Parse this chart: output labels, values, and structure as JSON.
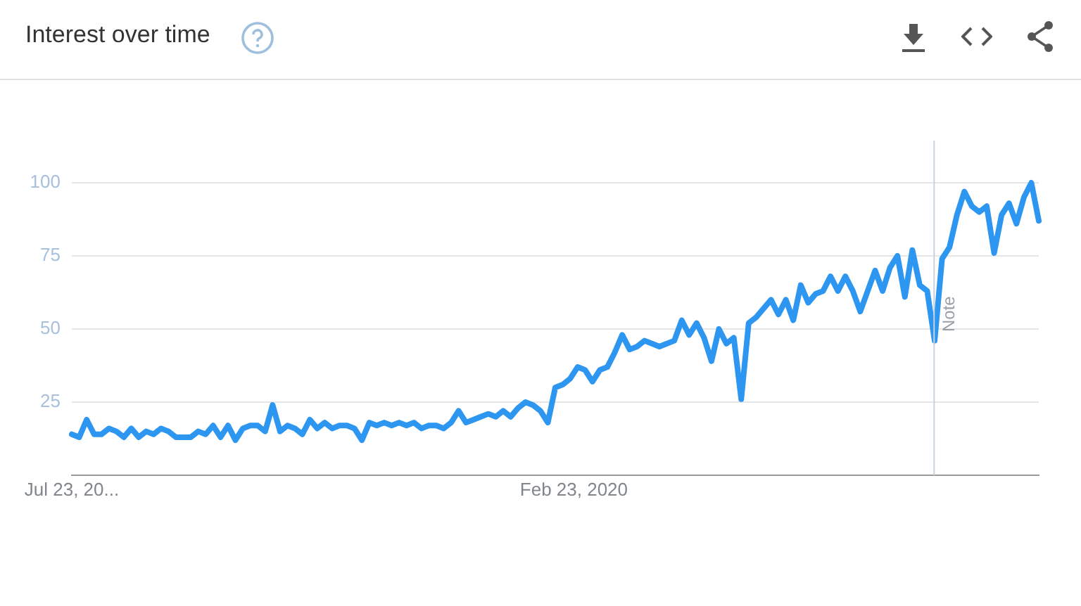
{
  "chart_data": {
    "type": "line",
    "title": "Interest over time",
    "x": [
      "2017-07-23",
      "2017-08-06",
      "2017-08-20",
      "2017-09-03",
      "2017-09-17",
      "2017-10-01",
      "2017-10-15",
      "2017-10-29",
      "2017-11-12",
      "2017-11-26",
      "2017-12-10",
      "2017-12-24",
      "2018-01-07",
      "2018-01-21",
      "2018-02-04",
      "2018-02-18",
      "2018-03-04",
      "2018-03-18",
      "2018-04-01",
      "2018-04-15",
      "2018-04-29",
      "2018-05-13",
      "2018-05-27",
      "2018-06-10",
      "2018-06-24",
      "2018-07-08",
      "2018-07-22",
      "2018-08-05",
      "2018-08-19",
      "2018-09-02",
      "2018-09-16",
      "2018-09-30",
      "2018-10-14",
      "2018-10-28",
      "2018-11-11",
      "2018-11-25",
      "2018-12-09",
      "2018-12-23",
      "2019-01-06",
      "2019-01-20",
      "2019-02-03",
      "2019-02-17",
      "2019-03-03",
      "2019-03-17",
      "2019-03-31",
      "2019-04-14",
      "2019-04-28",
      "2019-05-12",
      "2019-05-26",
      "2019-06-09",
      "2019-06-23",
      "2019-07-07",
      "2019-07-21",
      "2019-08-04",
      "2019-08-18",
      "2019-09-01",
      "2019-09-15",
      "2019-09-29",
      "2019-10-13",
      "2019-10-27",
      "2019-11-10",
      "2019-11-24",
      "2019-12-08",
      "2019-12-22",
      "2020-01-05",
      "2020-01-19",
      "2020-02-02",
      "2020-02-16",
      "2020-03-01",
      "2020-03-15",
      "2020-03-29",
      "2020-04-12",
      "2020-04-26",
      "2020-05-10",
      "2020-05-24",
      "2020-06-07",
      "2020-06-21",
      "2020-07-05",
      "2020-07-19",
      "2020-08-02",
      "2020-08-16",
      "2020-08-30",
      "2020-09-13",
      "2020-09-27",
      "2020-10-11",
      "2020-10-25",
      "2020-11-08",
      "2020-11-22",
      "2020-12-06",
      "2020-12-20",
      "2021-01-03",
      "2021-01-17",
      "2021-01-31",
      "2021-02-14",
      "2021-02-28",
      "2021-03-14",
      "2021-03-28",
      "2021-04-11",
      "2021-04-25",
      "2021-05-09",
      "2021-05-23",
      "2021-06-06",
      "2021-06-20",
      "2021-07-04",
      "2021-07-18",
      "2021-08-01",
      "2021-08-15",
      "2021-08-29",
      "2021-09-12",
      "2021-09-26",
      "2021-10-10",
      "2021-10-24",
      "2021-11-07",
      "2021-11-21",
      "2021-12-05",
      "2021-12-19",
      "2022-01-02",
      "2022-01-16",
      "2022-01-30",
      "2022-02-13",
      "2022-02-27",
      "2022-03-13",
      "2022-03-27",
      "2022-04-10",
      "2022-04-24",
      "2022-05-08",
      "2022-05-22",
      "2022-06-05",
      "2022-06-19",
      "2022-07-03",
      "2022-07-17"
    ],
    "series": [
      {
        "color": "#2c96f1",
        "values": [
          14,
          13,
          19,
          14,
          14,
          16,
          15,
          13,
          16,
          13,
          15,
          14,
          16,
          15,
          13,
          13,
          13,
          15,
          14,
          17,
          13,
          17,
          12,
          16,
          17,
          17,
          15,
          24,
          15,
          17,
          16,
          14,
          19,
          16,
          18,
          16,
          17,
          17,
          16,
          12,
          18,
          17,
          18,
          17,
          18,
          17,
          18,
          16,
          17,
          17,
          16,
          18,
          22,
          18,
          19,
          20,
          21,
          20,
          22,
          20,
          23,
          25,
          24,
          22,
          18,
          30,
          31,
          33,
          37,
          36,
          32,
          36,
          37,
          42,
          48,
          43,
          44,
          46,
          45,
          44,
          45,
          46,
          53,
          48,
          52,
          47,
          39,
          50,
          45,
          47,
          26,
          52,
          54,
          57,
          60,
          55,
          60,
          53,
          65,
          59,
          62,
          63,
          68,
          63,
          68,
          63,
          56,
          63,
          70,
          63,
          71,
          75,
          61,
          77,
          65,
          63,
          46,
          74,
          78,
          89,
          97,
          92,
          90,
          92,
          76,
          89,
          93,
          86,
          95,
          100,
          87
        ]
      }
    ],
    "xlim": [
      "2017-07-23",
      "2022-07-17"
    ],
    "xticks": [
      {
        "value": "2017-07-23",
        "label": "Jul 23, 20..."
      },
      {
        "value": "2020-02-23",
        "label": "Feb 23, 2020"
      }
    ],
    "ylim": [
      0,
      100
    ],
    "yticks": [
      25,
      50,
      75,
      100
    ],
    "grid": "y",
    "legend": false,
    "marker": "none",
    "line_style": "solid",
    "ref_lines": [
      {
        "axis": "x",
        "value": "2022-01-01",
        "label": "Note",
        "color": "#c8d2dc"
      }
    ]
  }
}
